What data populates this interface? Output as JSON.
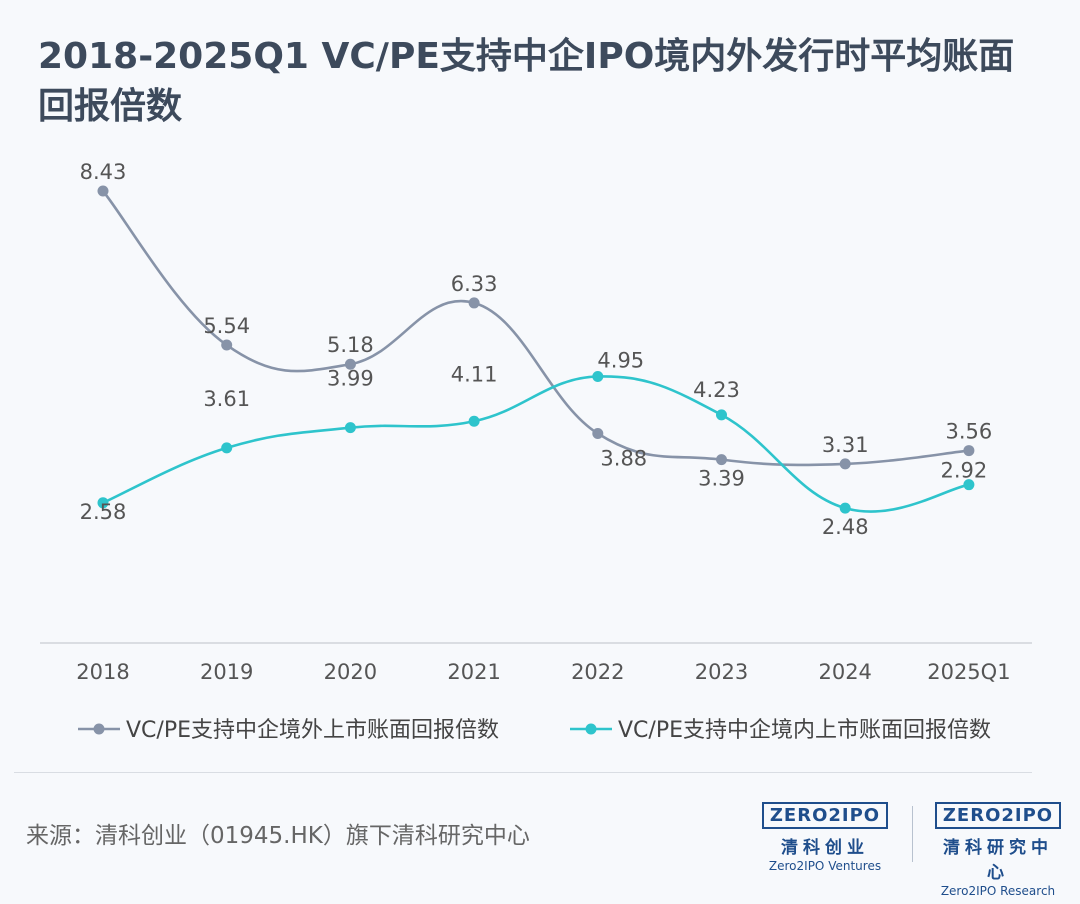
{
  "title": "2018-2025Q1 VC/PE支持中企IPO境内外发行时平均账面回报倍数",
  "source": "来源：清科创业（01945.HK）旗下清科研究中心",
  "logos": [
    {
      "mark": "ZERO2IPO",
      "cn": "清科创业",
      "en": "Zero2IPO Ventures"
    },
    {
      "mark": "ZERO2IPO",
      "cn": "清科研究中心",
      "en": "Zero2IPO Research"
    }
  ],
  "colors": {
    "overseas": "#8793a8",
    "domestic": "#2ec4cc",
    "title": "#3d4a5c"
  },
  "chart_data": {
    "type": "line",
    "title": "2018-2025Q1 VC/PE支持中企IPO境内外发行时平均账面回报倍数",
    "categories": [
      "2018",
      "2019",
      "2020",
      "2021",
      "2022",
      "2023",
      "2024",
      "2025Q1"
    ],
    "series": [
      {
        "name": "VC/PE支持中企境外上市账面回报倍数",
        "values": [
          8.43,
          5.54,
          5.18,
          6.33,
          3.88,
          3.39,
          3.31,
          3.56
        ],
        "color": "#8793a8"
      },
      {
        "name": "VC/PE支持中企境内上市账面回报倍数",
        "values": [
          2.58,
          3.61,
          3.99,
          4.11,
          4.95,
          4.23,
          2.48,
          2.92
        ],
        "color": "#2ec4cc"
      }
    ],
    "smooth": true,
    "grid": false,
    "legend": "bottom"
  }
}
